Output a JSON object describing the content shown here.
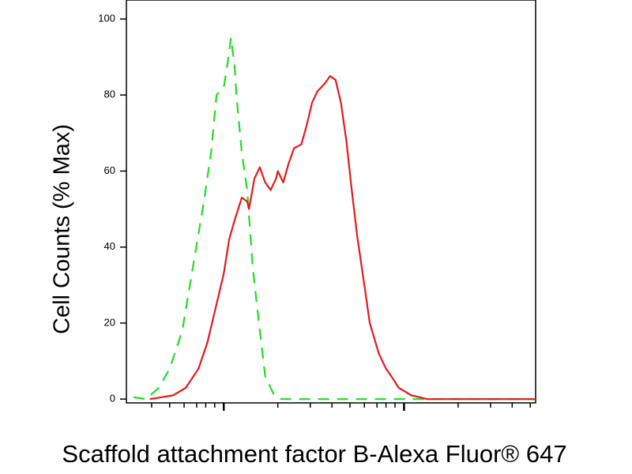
{
  "chart_data": {
    "type": "line",
    "y_label": "Cell Counts (% Max)",
    "x_label": "Scaffold attachment factor B-Alexa Fluor® 647",
    "series": [
      {
        "color": "#22dd22",
        "dash": true,
        "x": [
          0.5,
          0.57,
          0.64,
          0.7,
          0.77,
          0.83,
          0.89,
          0.93,
          0.96,
          1.0,
          1.02,
          1.04,
          1.06,
          1.07,
          1.1,
          1.13,
          1.16,
          1.2,
          1.23,
          1.28,
          1.32,
          1.73,
          2.17,
          2.73
        ],
        "values": [
          0.5,
          0,
          3,
          8,
          18,
          35,
          52,
          65,
          80,
          82,
          88,
          95,
          88,
          80,
          65,
          55,
          35,
          18,
          6,
          1,
          0,
          0,
          0,
          0
        ]
      },
      {
        "color": "#e31a1c",
        "dash": false,
        "x": [
          0.59,
          0.72,
          0.79,
          0.86,
          0.91,
          0.96,
          1.0,
          1.03,
          1.06,
          1.1,
          1.13,
          1.14,
          1.17,
          1.2,
          1.23,
          1.26,
          1.29,
          1.3,
          1.33,
          1.36,
          1.39,
          1.43,
          1.46,
          1.49,
          1.52,
          1.56,
          1.59,
          1.62,
          1.65,
          1.68,
          1.71,
          1.74,
          1.78,
          1.81,
          1.86,
          1.9,
          1.93,
          1.97,
          2.04,
          2.13,
          2.39,
          2.73
        ],
        "values": [
          0,
          1,
          3,
          8,
          15,
          25,
          33,
          42,
          47,
          53,
          52,
          50,
          58,
          61,
          57,
          55,
          58,
          60,
          57,
          62,
          66,
          67,
          72,
          78,
          81,
          83,
          85,
          84,
          78,
          68,
          55,
          43,
          30,
          20,
          12,
          8,
          6,
          3,
          1,
          0,
          0,
          0
        ]
      }
    ],
    "xlim": [
      0.46,
      2.73
    ],
    "xticks": [
      0.6,
      0.7,
      0.78,
      0.85,
      0.9,
      0.95,
      1,
      1.3,
      1.48,
      1.6,
      1.7,
      1.78,
      1.85,
      1.9,
      1.95,
      2,
      2.3,
      2.48,
      2.6,
      2.7
    ],
    "ylim": [
      -1,
      105
    ],
    "yticks": [
      0,
      20,
      40,
      60,
      80,
      100
    ]
  }
}
